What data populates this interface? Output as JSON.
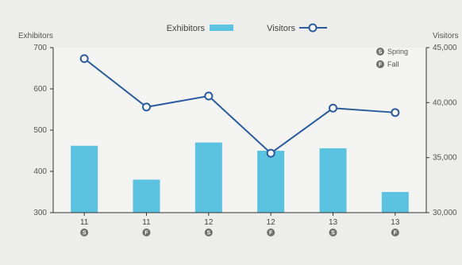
{
  "chart_data": {
    "type": "bar+line",
    "categories": [
      {
        "year": "11",
        "season": "S"
      },
      {
        "year": "11",
        "season": "F"
      },
      {
        "year": "12",
        "season": "S"
      },
      {
        "year": "12",
        "season": "F"
      },
      {
        "year": "13",
        "season": "S"
      },
      {
        "year": "13",
        "season": "F"
      }
    ],
    "series": [
      {
        "name": "Exhibitors",
        "kind": "bar",
        "axis": "left",
        "color": "#5bc2e0",
        "values": [
          462,
          380,
          470,
          450,
          456,
          350
        ]
      },
      {
        "name": "Visitors",
        "kind": "line",
        "axis": "right",
        "color": "#2b5b9c",
        "values": [
          44000,
          39600,
          40600,
          35400,
          39500,
          39100
        ]
      }
    ],
    "left_axis": {
      "label": "Exhibitors",
      "ylim": [
        300,
        700
      ],
      "ticks": [
        {
          "v": 300,
          "label": "300"
        },
        {
          "v": 400,
          "label": "400"
        },
        {
          "v": 500,
          "label": "500"
        },
        {
          "v": 600,
          "label": "600"
        },
        {
          "v": 700,
          "label": "700"
        }
      ]
    },
    "right_axis": {
      "label": "Visitors",
      "ylim": [
        30000,
        45000
      ],
      "ticks": [
        {
          "v": 30000,
          "label": "30,000"
        },
        {
          "v": 35000,
          "label": "35,000"
        },
        {
          "v": 40000,
          "label": "40,000"
        },
        {
          "v": 45000,
          "label": "45,000"
        }
      ]
    },
    "season_legend": [
      {
        "letter": "S",
        "label": "Spring"
      },
      {
        "letter": "F",
        "label": "Fall"
      }
    ],
    "legend_placement": "top-center",
    "grid": false,
    "badge_color": "#6e6e6e",
    "axis_color": "#333333"
  }
}
